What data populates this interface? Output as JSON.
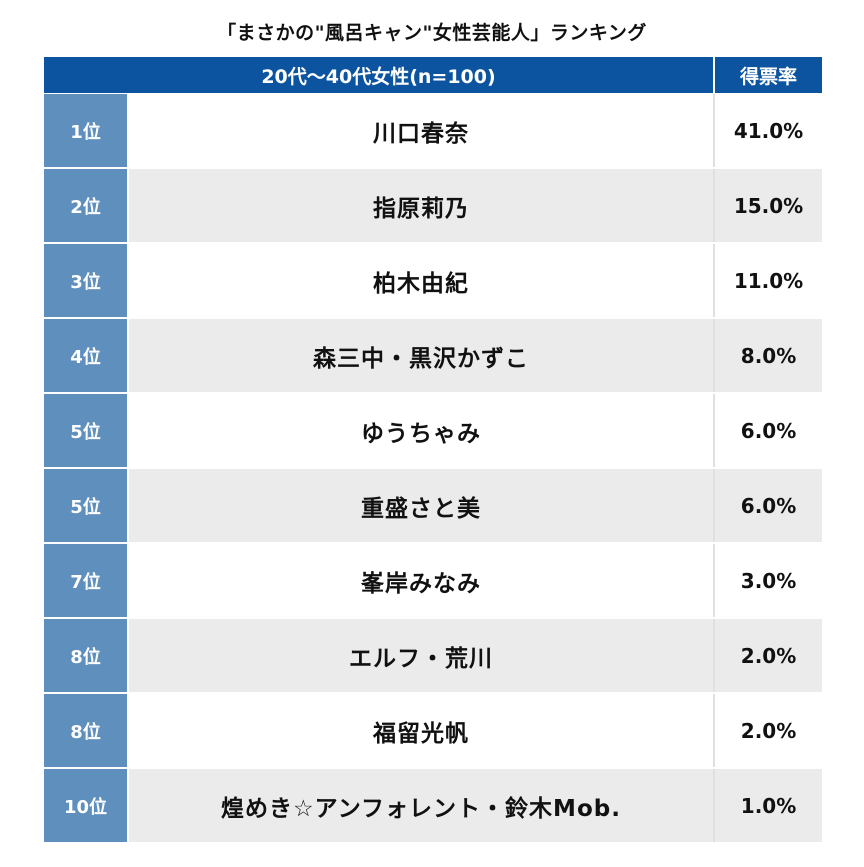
{
  "title": "「まさかの\"風呂キャン\"女性芸能人」ランキング",
  "table": {
    "group_header": "20代〜40代女性(n=100)",
    "rate_header": "得票率",
    "rows": [
      {
        "rank": "1位",
        "name": "川口春奈",
        "rate": "41.0%"
      },
      {
        "rank": "2位",
        "name": "指原莉乃",
        "rate": "15.0%"
      },
      {
        "rank": "3位",
        "name": "柏木由紀",
        "rate": "11.0%"
      },
      {
        "rank": "4位",
        "name": "森三中・黒沢かずこ",
        "rate": "8.0%"
      },
      {
        "rank": "5位",
        "name": "ゆうちゃみ",
        "rate": "6.0%"
      },
      {
        "rank": "5位",
        "name": "重盛さと美",
        "rate": "6.0%"
      },
      {
        "rank": "7位",
        "name": "峯岸みなみ",
        "rate": "3.0%"
      },
      {
        "rank": "8位",
        "name": "エルフ・荒川",
        "rate": "2.0%"
      },
      {
        "rank": "8位",
        "name": "福留光帆",
        "rate": "2.0%"
      },
      {
        "rank": "10位",
        "name": "煌めき☆アンフォレント・鈴木Mob.",
        "rate": "1.0%"
      }
    ]
  },
  "colors": {
    "header_bg": "#0d54a0",
    "rank_bg": "#5f8fbd",
    "row_alt_bg": "#ebebeb"
  }
}
